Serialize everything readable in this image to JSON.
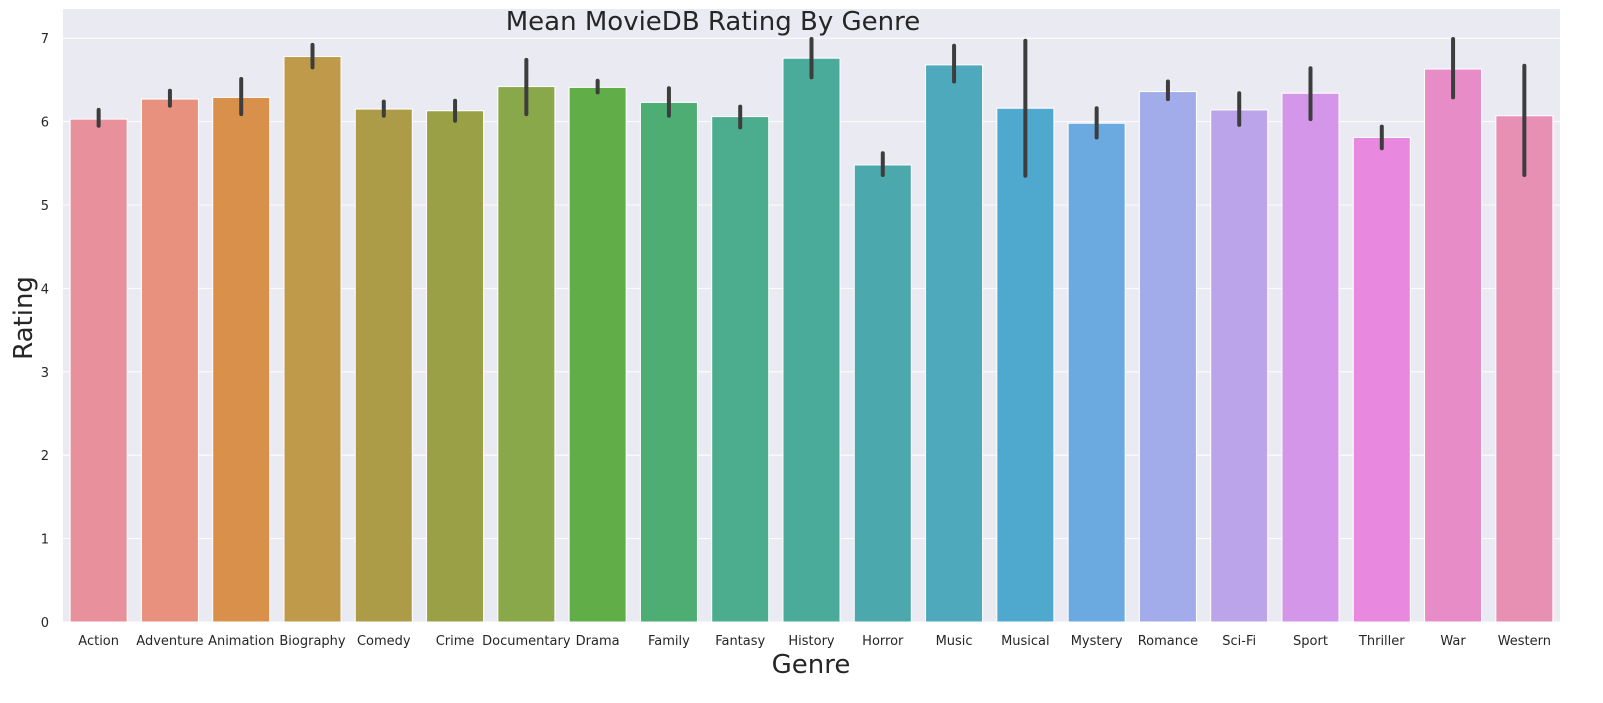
{
  "chart_data": {
    "type": "bar",
    "title": "Mean MovieDB Rating By Genre",
    "xlabel": "Genre",
    "ylabel": "Rating",
    "ylim": [
      0,
      7.35
    ],
    "yticks": [
      0,
      1,
      2,
      3,
      4,
      5,
      6,
      7
    ],
    "grid": true,
    "legend": "none",
    "categories": [
      "Action",
      "Adventure",
      "Animation",
      "Biography",
      "Comedy",
      "Crime",
      "Documentary",
      "Drama",
      "Family",
      "Fantasy",
      "History",
      "Horror",
      "Music",
      "Musical",
      "Mystery",
      "Romance",
      "Sci-Fi",
      "Sport",
      "Thriller",
      "War",
      "Western"
    ],
    "values": [
      6.03,
      6.27,
      6.29,
      6.78,
      6.15,
      6.13,
      6.42,
      6.41,
      6.23,
      6.06,
      6.76,
      5.48,
      6.68,
      6.16,
      5.98,
      6.36,
      6.14,
      6.34,
      5.81,
      6.63,
      6.07
    ],
    "error_low": [
      5.95,
      6.19,
      6.09,
      6.65,
      6.07,
      6.01,
      6.09,
      6.35,
      6.07,
      5.93,
      6.53,
      5.36,
      6.48,
      5.35,
      5.81,
      6.27,
      5.96,
      6.03,
      5.68,
      6.29,
      5.36
    ],
    "error_high": [
      6.14,
      6.37,
      6.51,
      6.92,
      6.24,
      6.25,
      6.74,
      6.49,
      6.4,
      6.18,
      6.99,
      5.62,
      6.91,
      6.97,
      6.16,
      6.48,
      6.34,
      6.64,
      5.94,
      6.99,
      6.67
    ],
    "colors": [
      "#E8919D",
      "#E8917F",
      "#D8904B",
      "#BE9A4A",
      "#AD9C47",
      "#9AA046",
      "#89A849",
      "#61AE48",
      "#4EAD73",
      "#4CAD8E",
      "#4BAB9B",
      "#4BA9AD",
      "#4EA9BD",
      "#4FA9CE",
      "#6AAAE0",
      "#A2ACEA",
      "#BBA4EA",
      "#D496E8",
      "#E888DE",
      "#E88CC8",
      "#E88FB4"
    ],
    "errorbar_color": "#3d3d3d",
    "background_color": "#EAEAF2",
    "grid_color": "#ffffff"
  }
}
